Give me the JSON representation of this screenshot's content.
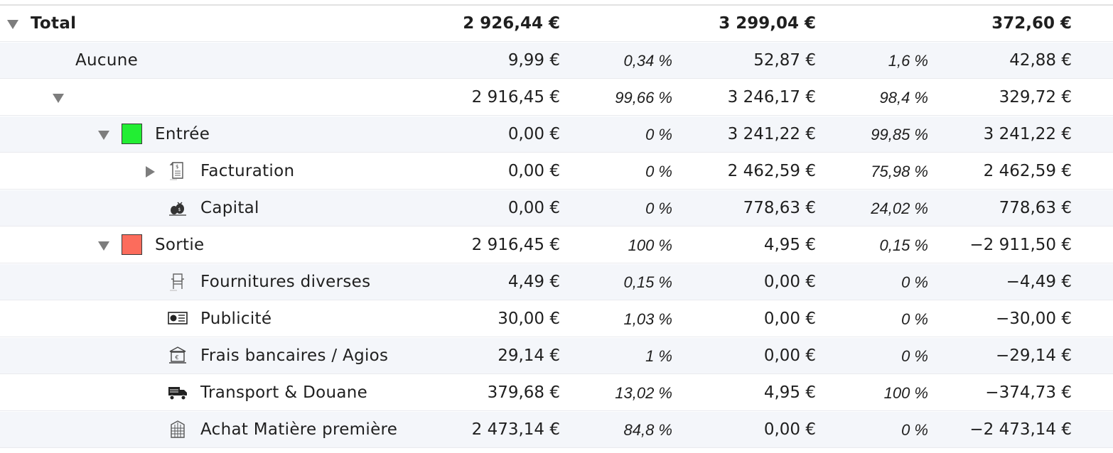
{
  "table": {
    "rows": [
      {
        "label": "Total",
        "v1": "2 926,44 €",
        "p1": "",
        "v2": "3 299,04 €",
        "p2": "",
        "v3": "372,60 €",
        "expander": "expanded",
        "bold": true
      },
      {
        "label": "Aucune",
        "v1": "9,99 €",
        "p1": "0,34 %",
        "v2": "52,87 €",
        "p2": "1,6 %",
        "v3": "42,88 €"
      },
      {
        "label": "",
        "v1": "2 916,45 €",
        "p1": "99,66 %",
        "v2": "3 246,17 €",
        "p2": "98,4 %",
        "v3": "329,72 €",
        "expander": "expanded"
      },
      {
        "label": "Entrée",
        "v1": "0,00 €",
        "p1": "0 %",
        "v2": "3 241,22 €",
        "p2": "99,85 %",
        "v3": "3 241,22 €",
        "expander": "expanded",
        "color": "#22ee33"
      },
      {
        "label": "Facturation",
        "v1": "0,00 €",
        "p1": "0 %",
        "v2": "2 462,59 €",
        "p2": "75,98 %",
        "v3": "2 462,59 €",
        "expander": "collapsed",
        "icon": "invoice-icon"
      },
      {
        "label": "Capital",
        "v1": "0,00 €",
        "p1": "0 %",
        "v2": "778,63 €",
        "p2": "24,02 %",
        "v3": "778,63 €",
        "icon": "capital-icon"
      },
      {
        "label": "Sortie",
        "v1": "2 916,45 €",
        "p1": "100 %",
        "v2": "4,95 €",
        "p2": "0,15 %",
        "v3": "−2 911,50 €",
        "expander": "expanded",
        "color": "#fc6c5c"
      },
      {
        "label": "Fournitures diverses",
        "v1": "4,49 €",
        "p1": "0,15 %",
        "v2": "0,00 €",
        "p2": "0 %",
        "v3": "−4,49 €",
        "icon": "chair-icon"
      },
      {
        "label": "Publicité",
        "v1": "30,00 €",
        "p1": "1,03 %",
        "v2": "0,00 €",
        "p2": "0 %",
        "v3": "−30,00 €",
        "icon": "advertising-icon"
      },
      {
        "label": "Frais bancaires / Agios",
        "v1": "29,14 €",
        "p1": "1 %",
        "v2": "0,00 €",
        "p2": "0 %",
        "v3": "−29,14 €",
        "icon": "bank-icon"
      },
      {
        "label": "Transport & Douane",
        "v1": "379,68 €",
        "p1": "13,02 %",
        "v2": "4,95 €",
        "p2": "100 %",
        "v3": "−374,73 €",
        "icon": "truck-icon"
      },
      {
        "label": "Achat Matière première",
        "v1": "2 473,14 €",
        "p1": "84,8 %",
        "v2": "0,00 €",
        "p2": "0 %",
        "v3": "−2 473,14 €",
        "icon": "building-icon"
      }
    ]
  }
}
